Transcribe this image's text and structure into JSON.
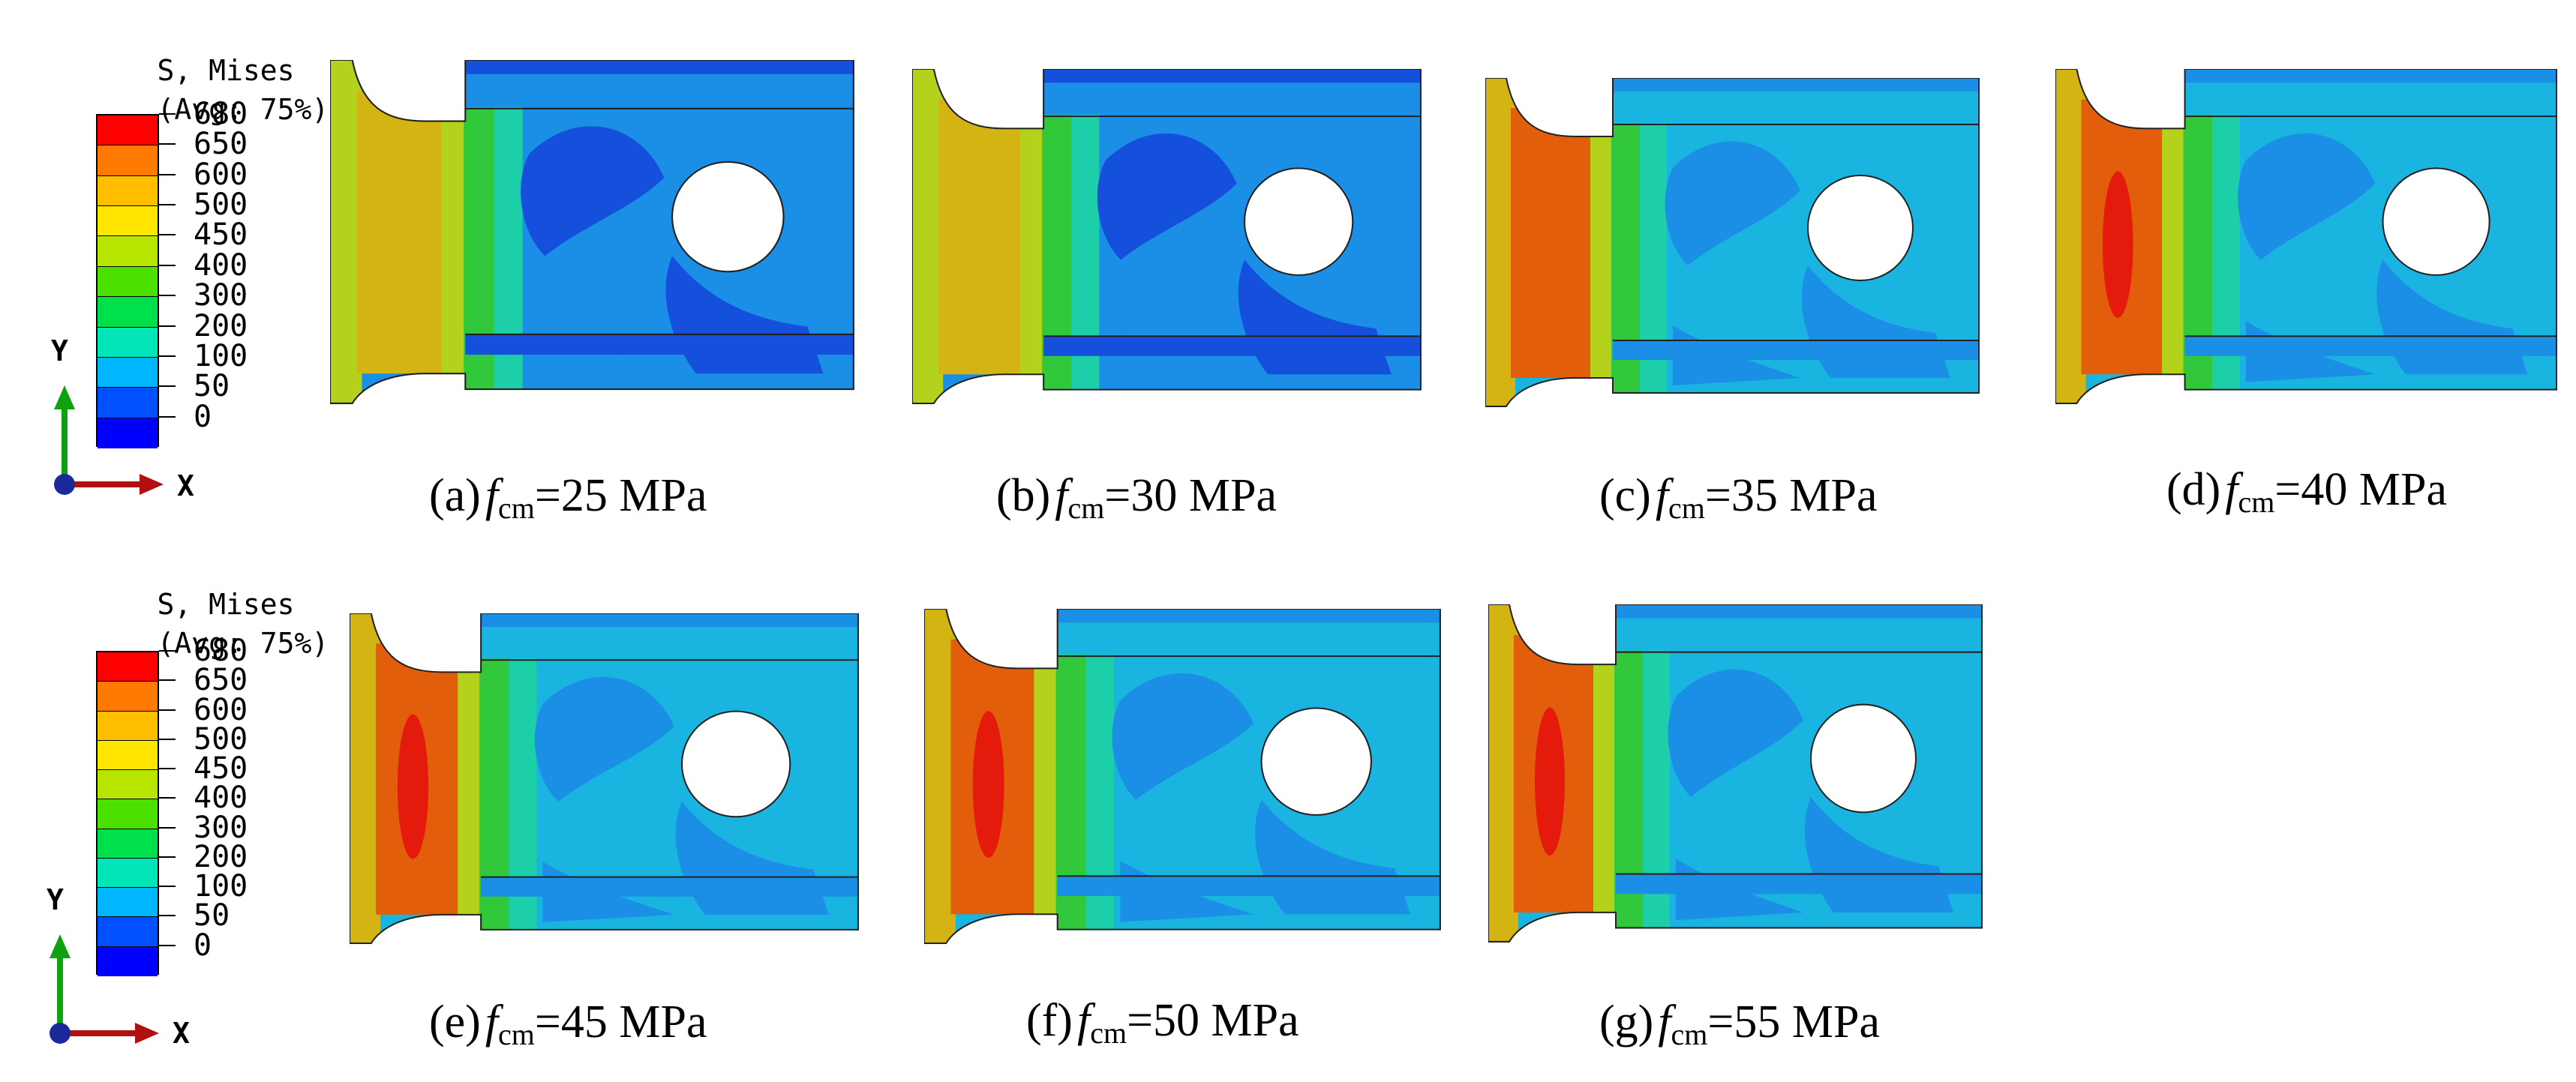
{
  "legend": {
    "title_line1": "S, Mises",
    "title_line2": "(Avg: 75%)",
    "levels": [
      "680",
      "650",
      "600",
      "500",
      "450",
      "400",
      "300",
      "200",
      "100",
      "50",
      "0"
    ],
    "colors": [
      "#ff0000",
      "#ff7a00",
      "#ffbe00",
      "#ffe600",
      "#b6e600",
      "#4be000",
      "#00e04b",
      "#00e6b6",
      "#00b6ff",
      "#0050ff",
      "#0000ff"
    ]
  },
  "axes": {
    "y_label": "Y",
    "x_label": "X"
  },
  "captions": [
    {
      "prefix": "(a)",
      "var": "f",
      "sub": "cm",
      "suffix": "=25 MPa"
    },
    {
      "prefix": "(b)",
      "var": "f",
      "sub": "cm",
      "suffix": "=30 MPa"
    },
    {
      "prefix": "(c)",
      "var": "f",
      "sub": "cm",
      "suffix": "=35 MPa"
    },
    {
      "prefix": "(d)",
      "var": "f",
      "sub": "cm",
      "suffix": "=40 MPa"
    },
    {
      "prefix": "(e)",
      "var": "f",
      "sub": "cm",
      "suffix": "=45 MPa"
    },
    {
      "prefix": "(f)",
      "var": "f",
      "sub": "cm",
      "suffix": "=50 MPa"
    },
    {
      "prefix": "(g)",
      "var": "f",
      "sub": "cm",
      "suffix": "=55 MPa"
    }
  ],
  "contour_colors": {
    "red": "#e41a0c",
    "orange": "#e25e0a",
    "gold": "#d4b412",
    "yellow_green": "#b4d21c",
    "green": "#32c83c",
    "teal": "#1ccfa8",
    "cyan": "#1ab4e0",
    "light_blue": "#1b8ee6",
    "blue": "#1450dc",
    "dark_blue": "#0a1ed2"
  }
}
